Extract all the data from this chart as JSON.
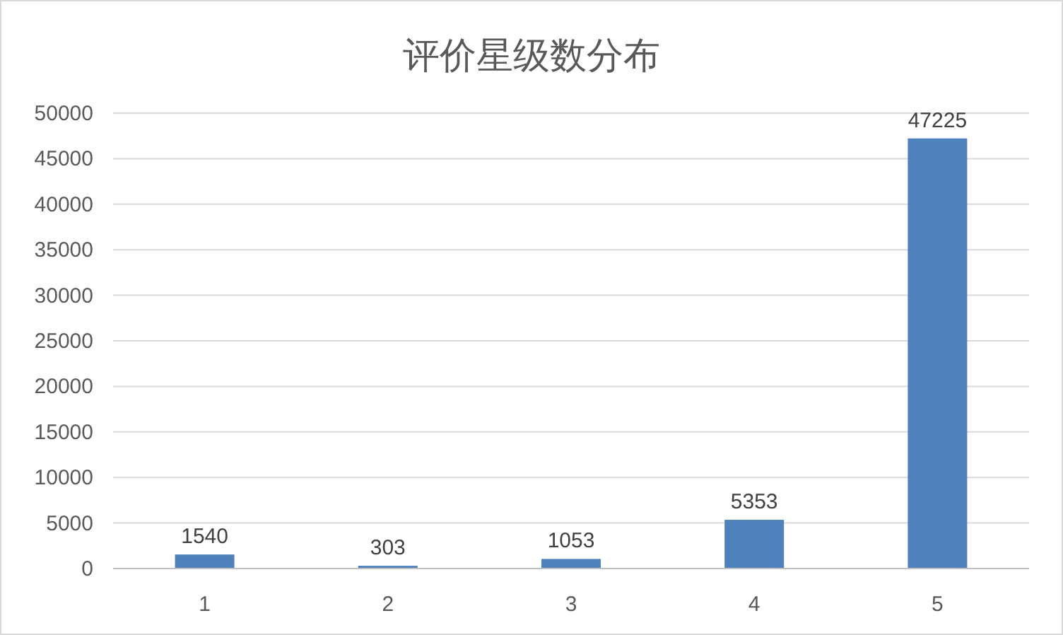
{
  "chart_data": {
    "type": "bar",
    "title": "评价星级数分布",
    "categories": [
      "1",
      "2",
      "3",
      "4",
      "5"
    ],
    "values": [
      1540,
      303,
      1053,
      5353,
      47225
    ],
    "color": "#4f81bd",
    "ylim": [
      0,
      50000
    ],
    "yticks": [
      0,
      5000,
      10000,
      15000,
      20000,
      25000,
      30000,
      35000,
      40000,
      45000,
      50000
    ],
    "grid": "y",
    "data_labels": true
  }
}
